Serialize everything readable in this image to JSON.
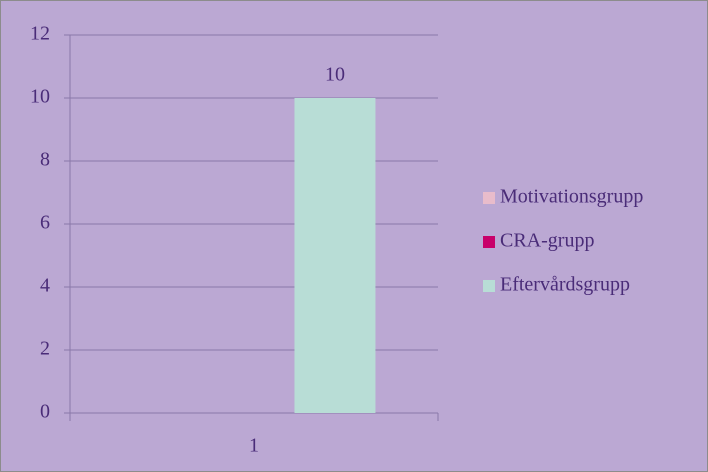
{
  "chart_data": {
    "type": "bar",
    "categories": [
      "1"
    ],
    "series": [
      {
        "name": "Motivationsgrupp",
        "color": "#e8bccb",
        "values": [
          0
        ]
      },
      {
        "name": "CRA-grupp",
        "color": "#c8006a",
        "values": [
          0
        ]
      },
      {
        "name": "Eftervårdsgrupp",
        "color": "#b8ddd6",
        "values": [
          10
        ],
        "data_labels": true
      }
    ],
    "ylim": [
      0,
      12
    ],
    "yticks": [
      0,
      2,
      4,
      6,
      8,
      10,
      12
    ],
    "grid": true,
    "legend": "right"
  }
}
